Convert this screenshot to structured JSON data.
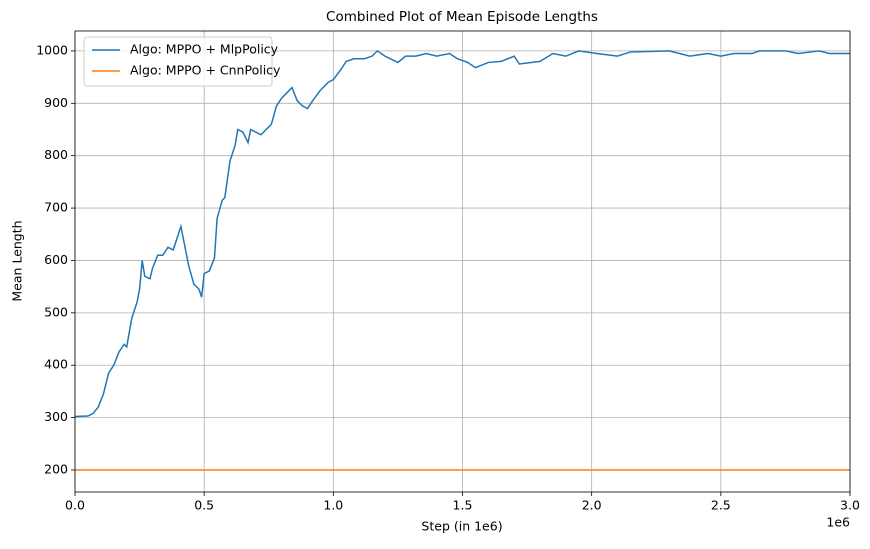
{
  "chart_data": {
    "type": "line",
    "title": "Combined Plot of Mean Episode Lengths",
    "x_label": "Step (in 1e6)",
    "y_label": "Mean Length",
    "x_offset_label": "1e6",
    "xlim": [
      0,
      3
    ],
    "ylim": [
      158,
      1038
    ],
    "xticks": [
      {
        "value": 0,
        "label": "0.0"
      },
      0.5,
      {
        "value": 1,
        "label": "1.0"
      },
      1.5,
      {
        "value": 2,
        "label": "2.0"
      },
      2.5,
      {
        "value": 3,
        "label": "3.0"
      }
    ],
    "yticks": [
      200,
      300,
      400,
      500,
      600,
      700,
      800,
      900,
      1000
    ],
    "grid": true,
    "legend": "upper left",
    "series": [
      {
        "name": "Algo: MPPO + MlpPolicy",
        "color": "#1f77b4",
        "x": [
          0,
          0.05,
          0.07,
          0.09,
          0.11,
          0.13,
          0.15,
          0.17,
          0.19,
          0.2,
          0.22,
          0.24,
          0.25,
          0.26,
          0.27,
          0.29,
          0.3,
          0.32,
          0.34,
          0.36,
          0.38,
          0.39,
          0.41,
          0.42,
          0.44,
          0.46,
          0.48,
          0.49,
          0.5,
          0.52,
          0.54,
          0.55,
          0.57,
          0.58,
          0.6,
          0.62,
          0.63,
          0.65,
          0.67,
          0.68,
          0.7,
          0.72,
          0.74,
          0.76,
          0.78,
          0.8,
          0.82,
          0.84,
          0.86,
          0.88,
          0.9,
          0.92,
          0.95,
          0.98,
          1.0,
          1.03,
          1.05,
          1.08,
          1.12,
          1.15,
          1.17,
          1.2,
          1.25,
          1.28,
          1.32,
          1.36,
          1.4,
          1.45,
          1.48,
          1.52,
          1.55,
          1.6,
          1.65,
          1.7,
          1.72,
          1.8,
          1.85,
          1.9,
          1.95,
          2.02,
          2.1,
          2.15,
          2.3,
          2.38,
          2.45,
          2.5,
          2.55,
          2.62,
          2.65,
          2.75,
          2.8,
          2.88,
          2.92,
          3.0
        ],
        "values": [
          302,
          303,
          308,
          320,
          345,
          385,
          400,
          425,
          440,
          435,
          490,
          520,
          545,
          600,
          570,
          565,
          585,
          610,
          610,
          625,
          620,
          635,
          665,
          640,
          590,
          555,
          545,
          530,
          575,
          580,
          605,
          680,
          715,
          720,
          790,
          820,
          850,
          845,
          825,
          850,
          845,
          840,
          850,
          860,
          895,
          910,
          920,
          930,
          905,
          895,
          890,
          905,
          925,
          940,
          945,
          965,
          980,
          985,
          985,
          990,
          1000,
          990,
          978,
          990,
          990,
          995,
          990,
          995,
          985,
          978,
          968,
          978,
          980,
          990,
          975,
          980,
          995,
          990,
          1000,
          995,
          990,
          998,
          1000,
          990,
          995,
          990,
          995,
          995,
          1000,
          1000,
          995,
          1000,
          995,
          995
        ]
      },
      {
        "name": "Algo: MPPO + CnnPolicy",
        "color": "#ff7f0e",
        "x": [
          0,
          3
        ],
        "values": [
          200,
          200
        ]
      }
    ]
  }
}
